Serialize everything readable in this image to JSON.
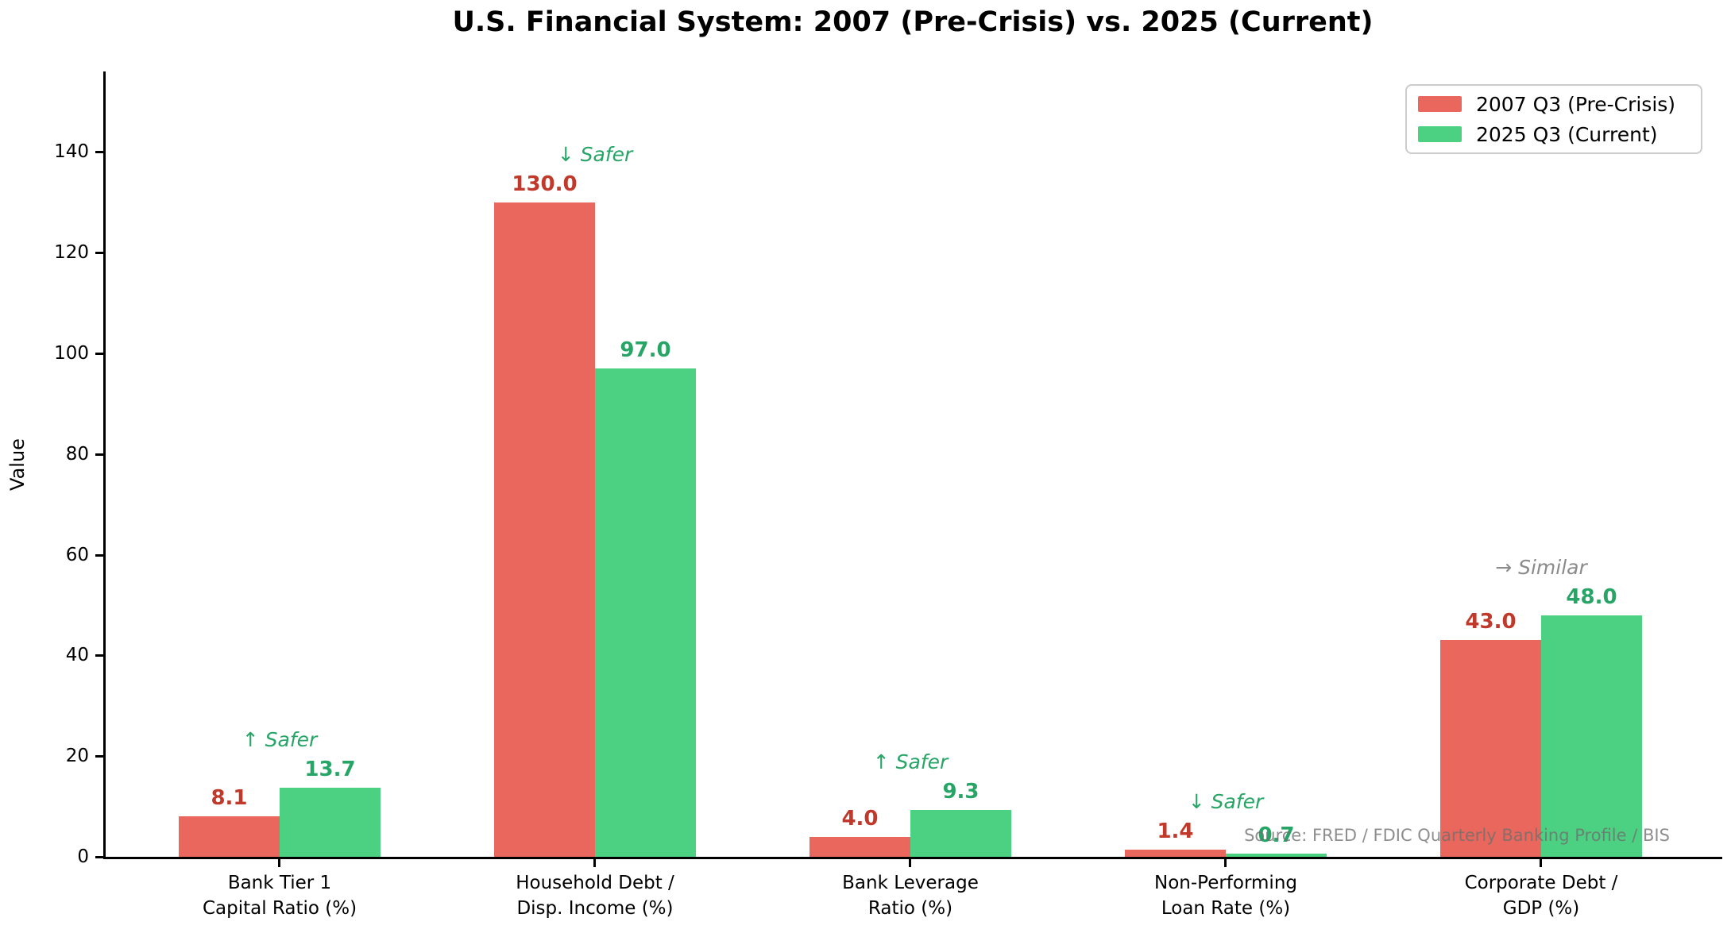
{
  "chart_data": {
    "type": "bar",
    "title": "U.S. Financial System: 2007 (Pre-Crisis) vs. 2025 (Current)",
    "ylabel": "Value",
    "ylim": [
      0,
      156
    ],
    "yticks": [
      0,
      20,
      40,
      60,
      80,
      100,
      120,
      140
    ],
    "grid": false,
    "legend_position": "upper right",
    "categories": [
      "Bank Tier 1\nCapital Ratio (%)",
      "Household Debt /\nDisp. Income (%)",
      "Bank Leverage\nRatio (%)",
      "Non-Performing\nLoan Rate (%)",
      "Corporate Debt /\nGDP (%)"
    ],
    "series": [
      {
        "name": "2007 Q3 (Pre-Crisis)",
        "color": "#e9675c",
        "label_color": "#c0392b",
        "values": [
          8.1,
          130.0,
          4.0,
          1.4,
          43.0
        ]
      },
      {
        "name": "2025 Q3 (Current)",
        "color": "#4cd182",
        "label_color": "#27a567",
        "values": [
          13.7,
          97.0,
          9.3,
          0.7,
          48.0
        ]
      }
    ],
    "annotations": [
      {
        "text": "↑ Safer",
        "color": "#27a567"
      },
      {
        "text": "↓ Safer",
        "color": "#27a567"
      },
      {
        "text": "↑ Safer",
        "color": "#27a567"
      },
      {
        "text": "↓ Safer",
        "color": "#27a567"
      },
      {
        "text": "→ Similar",
        "color": "#8b8b8b"
      }
    ],
    "source_note": "Source: FRED / FDIC Quarterly Banking Profile / BIS"
  }
}
